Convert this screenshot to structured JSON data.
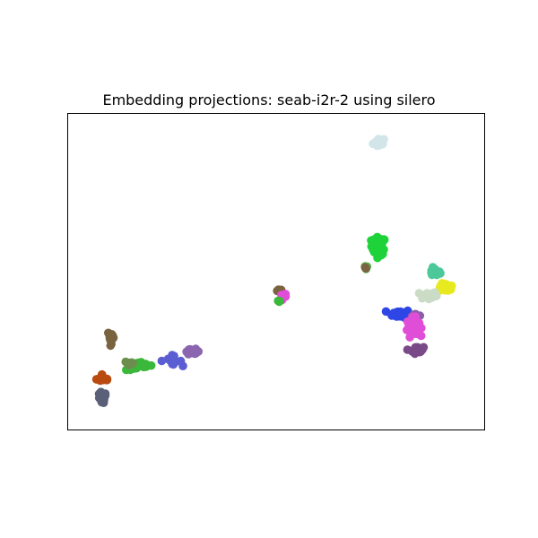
{
  "chart_data": {
    "type": "scatter",
    "title": "Embedding projections: seab-i2r-2 using silero",
    "xlabel": "",
    "ylabel": "",
    "xticks": "none",
    "yticks": "none",
    "xlim": [
      0,
      100
    ],
    "ylim": [
      0,
      100
    ],
    "grid": false,
    "legend": "none",
    "clusters": [
      {
        "color": "#d2e6ea",
        "center": [
          76.5,
          94.5
        ],
        "spread": [
          1.2,
          1.2
        ],
        "n": 18
      },
      {
        "color": "#1ed23a",
        "center": [
          76.2,
          58.8
        ],
        "spread": [
          1.3,
          2.2
        ],
        "n": 40
      },
      {
        "color": "#58b24a",
        "center": [
          73.0,
          51.5
        ],
        "spread": [
          0.5,
          0.5
        ],
        "n": 3
      },
      {
        "color": "#7a6440",
        "center": [
          72.6,
          51.2
        ],
        "spread": [
          0.3,
          0.3
        ],
        "n": 2
      },
      {
        "color": "#4cc89a",
        "center": [
          90.5,
          49.8
        ],
        "spread": [
          1.0,
          1.0
        ],
        "n": 20
      },
      {
        "color": "#e6ea1e",
        "center": [
          93.5,
          44.5
        ],
        "spread": [
          1.3,
          1.0
        ],
        "n": 30
      },
      {
        "color": "#cbdcc6",
        "center": [
          89.0,
          41.8
        ],
        "spread": [
          1.5,
          1.0
        ],
        "n": 25
      },
      {
        "color": "#2e46e6",
        "center": [
          82.0,
          35.5
        ],
        "spread": [
          1.6,
          1.0
        ],
        "n": 40
      },
      {
        "color": "#8a5ea8",
        "center": [
          85.5,
          35.0
        ],
        "spread": [
          0.8,
          0.6
        ],
        "n": 8
      },
      {
        "color": "#e04ed8",
        "center": [
          85.0,
          31.0
        ],
        "spread": [
          1.1,
          2.2
        ],
        "n": 45
      },
      {
        "color": "#7a4a88",
        "center": [
          86.0,
          23.0
        ],
        "spread": [
          1.2,
          0.8
        ],
        "n": 25
      },
      {
        "color": "#7a6440",
        "center": [
          50.8,
          43.5
        ],
        "spread": [
          0.4,
          0.4
        ],
        "n": 5
      },
      {
        "color": "#e04ed8",
        "center": [
          52.0,
          41.5
        ],
        "spread": [
          0.6,
          0.5
        ],
        "n": 7
      },
      {
        "color": "#3ab83a",
        "center": [
          50.8,
          40.0
        ],
        "spread": [
          0.4,
          0.4
        ],
        "n": 3
      },
      {
        "color": "#7a6440",
        "center": [
          7.8,
          27.5
        ],
        "spread": [
          0.6,
          1.6
        ],
        "n": 15
      },
      {
        "color": "#8b65b0",
        "center": [
          28.5,
          22.5
        ],
        "spread": [
          1.4,
          0.6
        ],
        "n": 15
      },
      {
        "color": "#5a5ed2",
        "center": [
          23.0,
          19.5
        ],
        "spread": [
          2.0,
          1.1
        ],
        "n": 14
      },
      {
        "color": "#3ab83a",
        "center": [
          15.0,
          17.5
        ],
        "spread": [
          2.4,
          1.0
        ],
        "n": 30
      },
      {
        "color": "#6b8e4e",
        "center": [
          12.5,
          18.5
        ],
        "spread": [
          1.0,
          0.8
        ],
        "n": 12
      },
      {
        "color": "#b94a10",
        "center": [
          5.8,
          13.0
        ],
        "spread": [
          1.2,
          0.7
        ],
        "n": 18
      },
      {
        "color": "#5a6078",
        "center": [
          5.3,
          6.5
        ],
        "spread": [
          0.9,
          1.4
        ],
        "n": 20
      }
    ]
  }
}
